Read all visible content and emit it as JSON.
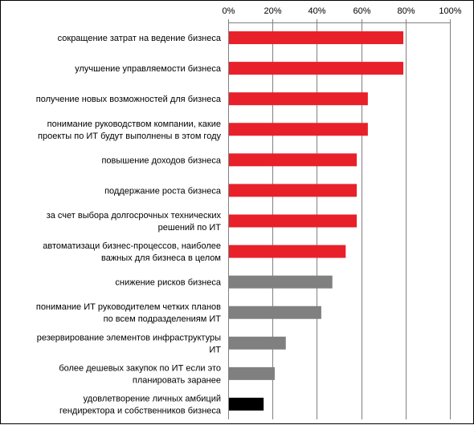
{
  "chart_data": {
    "type": "bar",
    "orientation": "horizontal",
    "x_axis_position": "top",
    "grid": true,
    "xlim": [
      0,
      100
    ],
    "x_tick_values": [
      0,
      20,
      40,
      60,
      80,
      100
    ],
    "x_tick_labels": [
      "0%",
      "20%",
      "40%",
      "60%",
      "80%",
      "100%"
    ],
    "categories": [
      [
        "сокращение затрат на ведение бизнеса"
      ],
      [
        "улучшение управляемости бизнеса"
      ],
      [
        "получение новых возможностей для бизнеса"
      ],
      [
        "понимание руководством компании, какие",
        "проекты по ИТ будут выполнены в этом году"
      ],
      [
        "повышение доходов бизнеса"
      ],
      [
        "поддержание роста бизнеса"
      ],
      [
        "за счет выбора долгосрочных технических",
        "решений по ИТ"
      ],
      [
        "автоматизаци бизнес-процессов, наиболее",
        "важных для бизнеса в целом"
      ],
      [
        "снижение рисков бизнеса"
      ],
      [
        "понимание ИТ руководителем четких планов",
        "по всем подразделениям ИТ"
      ],
      [
        "резервирование элементов инфраструктуры",
        "ИТ"
      ],
      [
        "более дешевых закупок по ИТ если это",
        "планировать заранее"
      ],
      [
        "удовлетворение личных амбиций",
        "гендиректора и собственников бизнеса"
      ]
    ],
    "values": [
      79,
      79,
      63,
      63,
      58,
      58,
      58,
      53,
      47,
      42,
      26,
      21,
      16
    ],
    "bar_colors": [
      "#e8202a",
      "#e8202a",
      "#e8202a",
      "#e8202a",
      "#e8202a",
      "#e8202a",
      "#e8202a",
      "#e8202a",
      "#808080",
      "#808080",
      "#808080",
      "#808080",
      "#000000"
    ],
    "title": "",
    "xlabel": "",
    "ylabel": ""
  }
}
